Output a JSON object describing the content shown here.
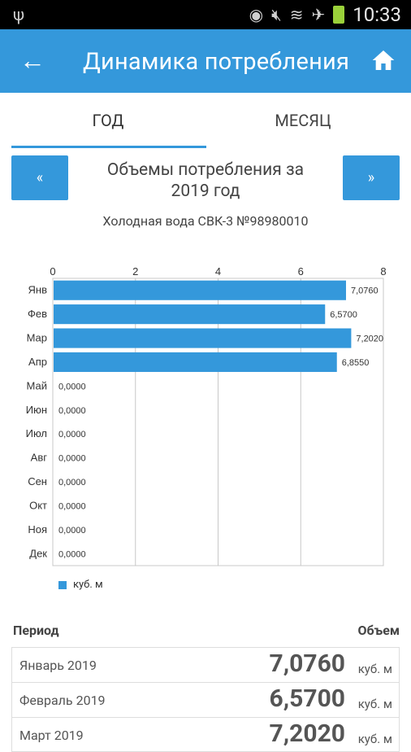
{
  "status_bar": {
    "time": "10:33"
  },
  "app_bar": {
    "title": "Динамика потребления",
    "back_icon": "arrow-left-icon",
    "home_icon": "home-icon"
  },
  "tabs": [
    {
      "label": "ГОД",
      "active": true
    },
    {
      "label": "МЕСЯЦ",
      "active": false
    }
  ],
  "period": {
    "prev_label": "«",
    "next_label": "»",
    "title_line1": "Объемы потребления за",
    "title_line2": "2019 год"
  },
  "meter": "Холодная вода СВК-3 №98980010",
  "chart_data": {
    "type": "bar",
    "orientation": "horizontal",
    "categories": [
      "Янв",
      "Фев",
      "Мар",
      "Апр",
      "Май",
      "Июн",
      "Июл",
      "Авг",
      "Сен",
      "Окт",
      "Ноя",
      "Дек"
    ],
    "series": [
      {
        "name": "куб. м",
        "values": [
          7.076,
          6.57,
          7.202,
          6.855,
          0,
          0,
          0,
          0,
          0,
          0,
          0,
          0
        ]
      }
    ],
    "value_labels": [
      "7,0760",
      "6,5700",
      "7,2020",
      "6,8550",
      "0,0000",
      "0,0000",
      "0,0000",
      "0,0000",
      "0,0000",
      "0,0000",
      "0,0000",
      "0,0000"
    ],
    "x_ticks": [
      "0",
      "2",
      "4",
      "6",
      "8"
    ],
    "xlim": [
      0,
      8
    ],
    "grid": true,
    "legend": "bottom-left",
    "color": "#3498db"
  },
  "table": {
    "header_period": "Период",
    "header_volume": "Объем",
    "rows": [
      {
        "period": "Январь 2019",
        "value": "7,0760",
        "unit": "куб. м"
      },
      {
        "period": "Февраль 2019",
        "value": "6,5700",
        "unit": "куб. м"
      },
      {
        "period": "Март 2019",
        "value": "7,2020",
        "unit": "куб. м"
      }
    ]
  },
  "colors": {
    "accent": "#3498db"
  }
}
